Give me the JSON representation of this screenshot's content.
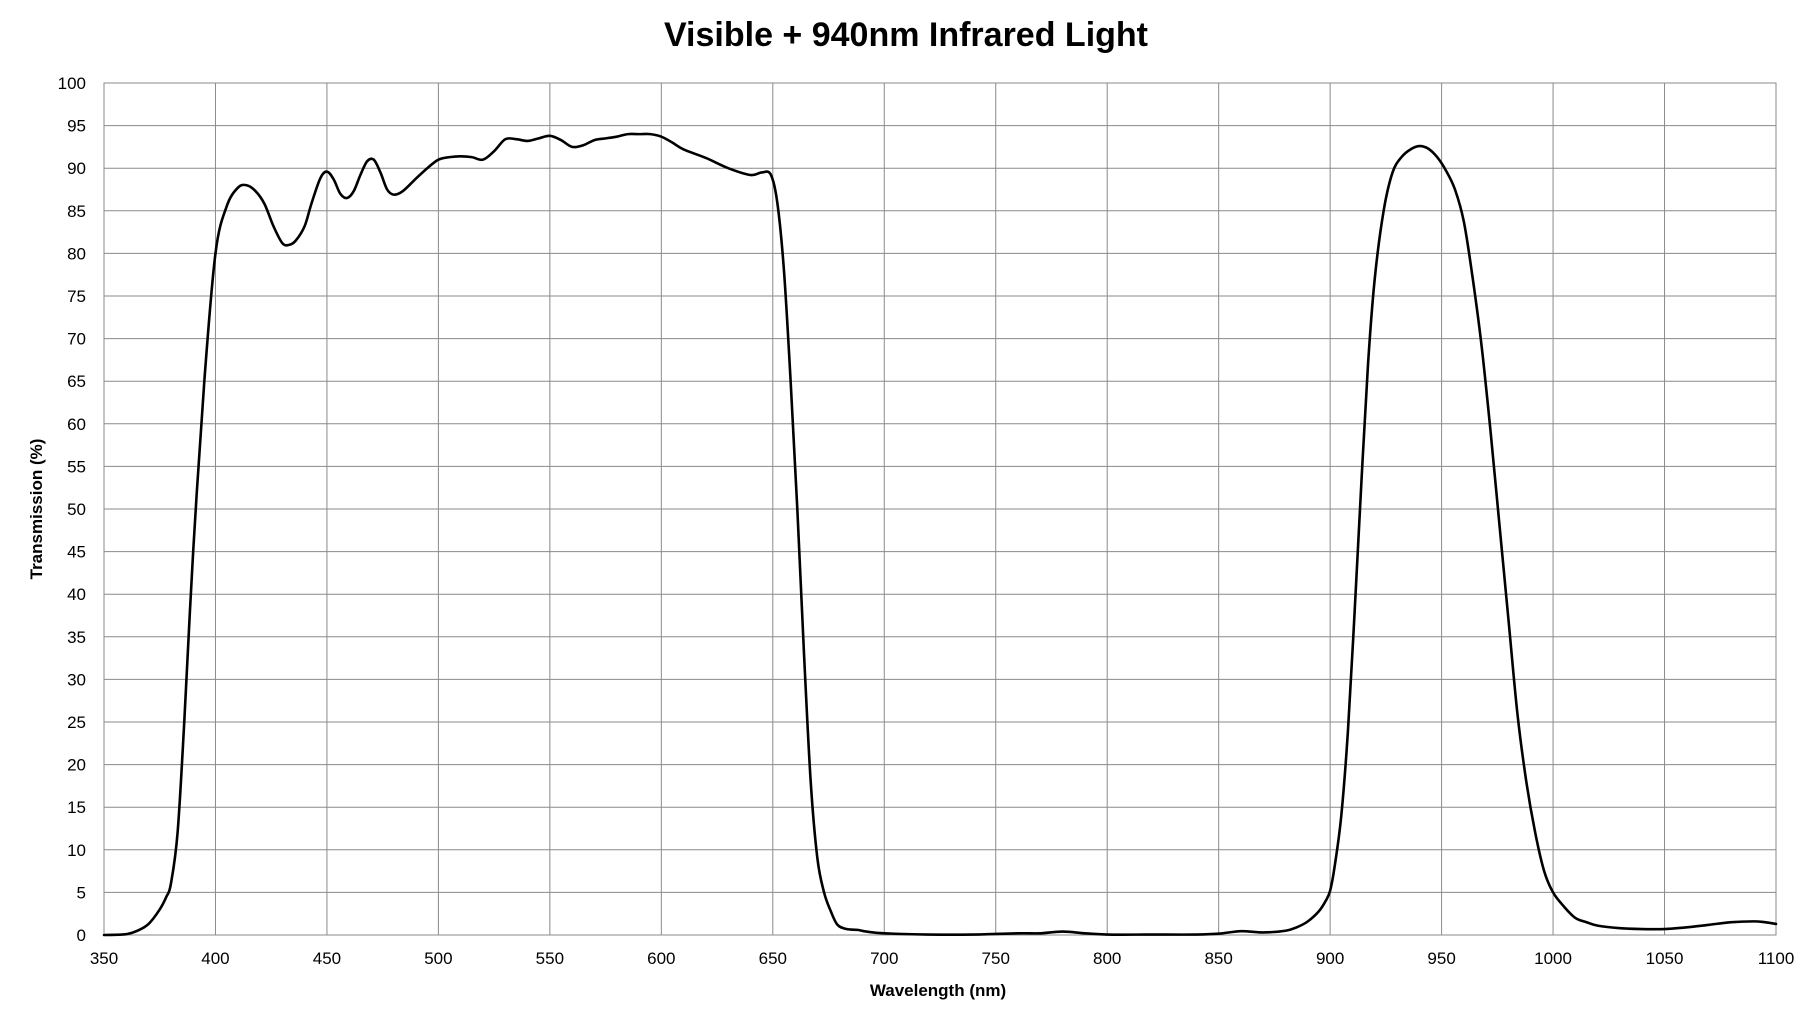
{
  "chart_data": {
    "type": "line",
    "title": "Visible + 940nm Infrared Light",
    "xlabel": "Wavelength (nm)",
    "ylabel": "Transmission (%)",
    "xlim": [
      350,
      1100
    ],
    "ylim": [
      0,
      100
    ],
    "x_ticks": [
      350,
      400,
      450,
      500,
      550,
      600,
      650,
      700,
      750,
      800,
      850,
      900,
      950,
      1000,
      1050,
      1100
    ],
    "y_ticks": [
      0,
      5,
      10,
      15,
      20,
      25,
      30,
      35,
      40,
      45,
      50,
      55,
      60,
      65,
      70,
      75,
      80,
      85,
      90,
      95,
      100
    ],
    "grid": true,
    "legend": "none",
    "line_color": "#000000",
    "grid_color": "#8a8a8a",
    "series": [
      {
        "points": [
          [
            350,
            0
          ],
          [
            360,
            0.1
          ],
          [
            365,
            0.5
          ],
          [
            370,
            1.3
          ],
          [
            375,
            3
          ],
          [
            378,
            4.5
          ],
          [
            380,
            6
          ],
          [
            383,
            12
          ],
          [
            386,
            25
          ],
          [
            390,
            45
          ],
          [
            395,
            65
          ],
          [
            400,
            80
          ],
          [
            405,
            85.5
          ],
          [
            410,
            87.7
          ],
          [
            414,
            88
          ],
          [
            418,
            87.3
          ],
          [
            422,
            85.8
          ],
          [
            426,
            83.2
          ],
          [
            430,
            81.2
          ],
          [
            433,
            81
          ],
          [
            436,
            81.5
          ],
          [
            440,
            83.2
          ],
          [
            443,
            85.8
          ],
          [
            447,
            88.8
          ],
          [
            450,
            89.6
          ],
          [
            453,
            88.7
          ],
          [
            456,
            87
          ],
          [
            459,
            86.5
          ],
          [
            462,
            87.3
          ],
          [
            465,
            89.2
          ],
          [
            468,
            90.8
          ],
          [
            471,
            91
          ],
          [
            474,
            89.5
          ],
          [
            477,
            87.5
          ],
          [
            480,
            86.9
          ],
          [
            484,
            87.3
          ],
          [
            490,
            88.8
          ],
          [
            495,
            90
          ],
          [
            500,
            91
          ],
          [
            505,
            91.3
          ],
          [
            510,
            91.4
          ],
          [
            515,
            91.3
          ],
          [
            520,
            91
          ],
          [
            525,
            92
          ],
          [
            530,
            93.4
          ],
          [
            535,
            93.4
          ],
          [
            540,
            93.2
          ],
          [
            545,
            93.5
          ],
          [
            550,
            93.8
          ],
          [
            555,
            93.3
          ],
          [
            560,
            92.5
          ],
          [
            565,
            92.7
          ],
          [
            570,
            93.3
          ],
          [
            575,
            93.5
          ],
          [
            580,
            93.7
          ],
          [
            585,
            94
          ],
          [
            590,
            94
          ],
          [
            595,
            94
          ],
          [
            600,
            93.7
          ],
          [
            605,
            93
          ],
          [
            610,
            92.2
          ],
          [
            620,
            91.2
          ],
          [
            630,
            90
          ],
          [
            640,
            89.2
          ],
          [
            645,
            89.5
          ],
          [
            649,
            89.3
          ],
          [
            652,
            86
          ],
          [
            655,
            78
          ],
          [
            658,
            65
          ],
          [
            661,
            50
          ],
          [
            664,
            33
          ],
          [
            667,
            18
          ],
          [
            670,
            9
          ],
          [
            673,
            5
          ],
          [
            676,
            2.8
          ],
          [
            679,
            1.2
          ],
          [
            683,
            0.7
          ],
          [
            688,
            0.6
          ],
          [
            692,
            0.4
          ],
          [
            700,
            0.2
          ],
          [
            720,
            0.05
          ],
          [
            740,
            0.05
          ],
          [
            760,
            0.2
          ],
          [
            770,
            0.2
          ],
          [
            780,
            0.4
          ],
          [
            790,
            0.2
          ],
          [
            800,
            0.05
          ],
          [
            820,
            0.05
          ],
          [
            840,
            0.05
          ],
          [
            850,
            0.15
          ],
          [
            860,
            0.45
          ],
          [
            870,
            0.3
          ],
          [
            880,
            0.5
          ],
          [
            885,
            0.9
          ],
          [
            890,
            1.6
          ],
          [
            895,
            2.8
          ],
          [
            898,
            4
          ],
          [
            900,
            5.2
          ],
          [
            902,
            8
          ],
          [
            905,
            14
          ],
          [
            908,
            24
          ],
          [
            911,
            38
          ],
          [
            914,
            53
          ],
          [
            917,
            67
          ],
          [
            920,
            77
          ],
          [
            924,
            85
          ],
          [
            928,
            89.5
          ],
          [
            932,
            91.3
          ],
          [
            936,
            92.2
          ],
          [
            940,
            92.6
          ],
          [
            944,
            92.3
          ],
          [
            948,
            91.3
          ],
          [
            952,
            89.7
          ],
          [
            956,
            87.5
          ],
          [
            960,
            83.7
          ],
          [
            964,
            77
          ],
          [
            968,
            69
          ],
          [
            972,
            59
          ],
          [
            976,
            48
          ],
          [
            980,
            37
          ],
          [
            984,
            26
          ],
          [
            988,
            18
          ],
          [
            992,
            12
          ],
          [
            996,
            7.5
          ],
          [
            1000,
            5
          ],
          [
            1005,
            3.3
          ],
          [
            1010,
            2
          ],
          [
            1015,
            1.5
          ],
          [
            1020,
            1.1
          ],
          [
            1030,
            0.8
          ],
          [
            1040,
            0.7
          ],
          [
            1050,
            0.7
          ],
          [
            1060,
            0.9
          ],
          [
            1070,
            1.2
          ],
          [
            1080,
            1.5
          ],
          [
            1090,
            1.6
          ],
          [
            1095,
            1.5
          ],
          [
            1100,
            1.3
          ]
        ]
      }
    ]
  }
}
